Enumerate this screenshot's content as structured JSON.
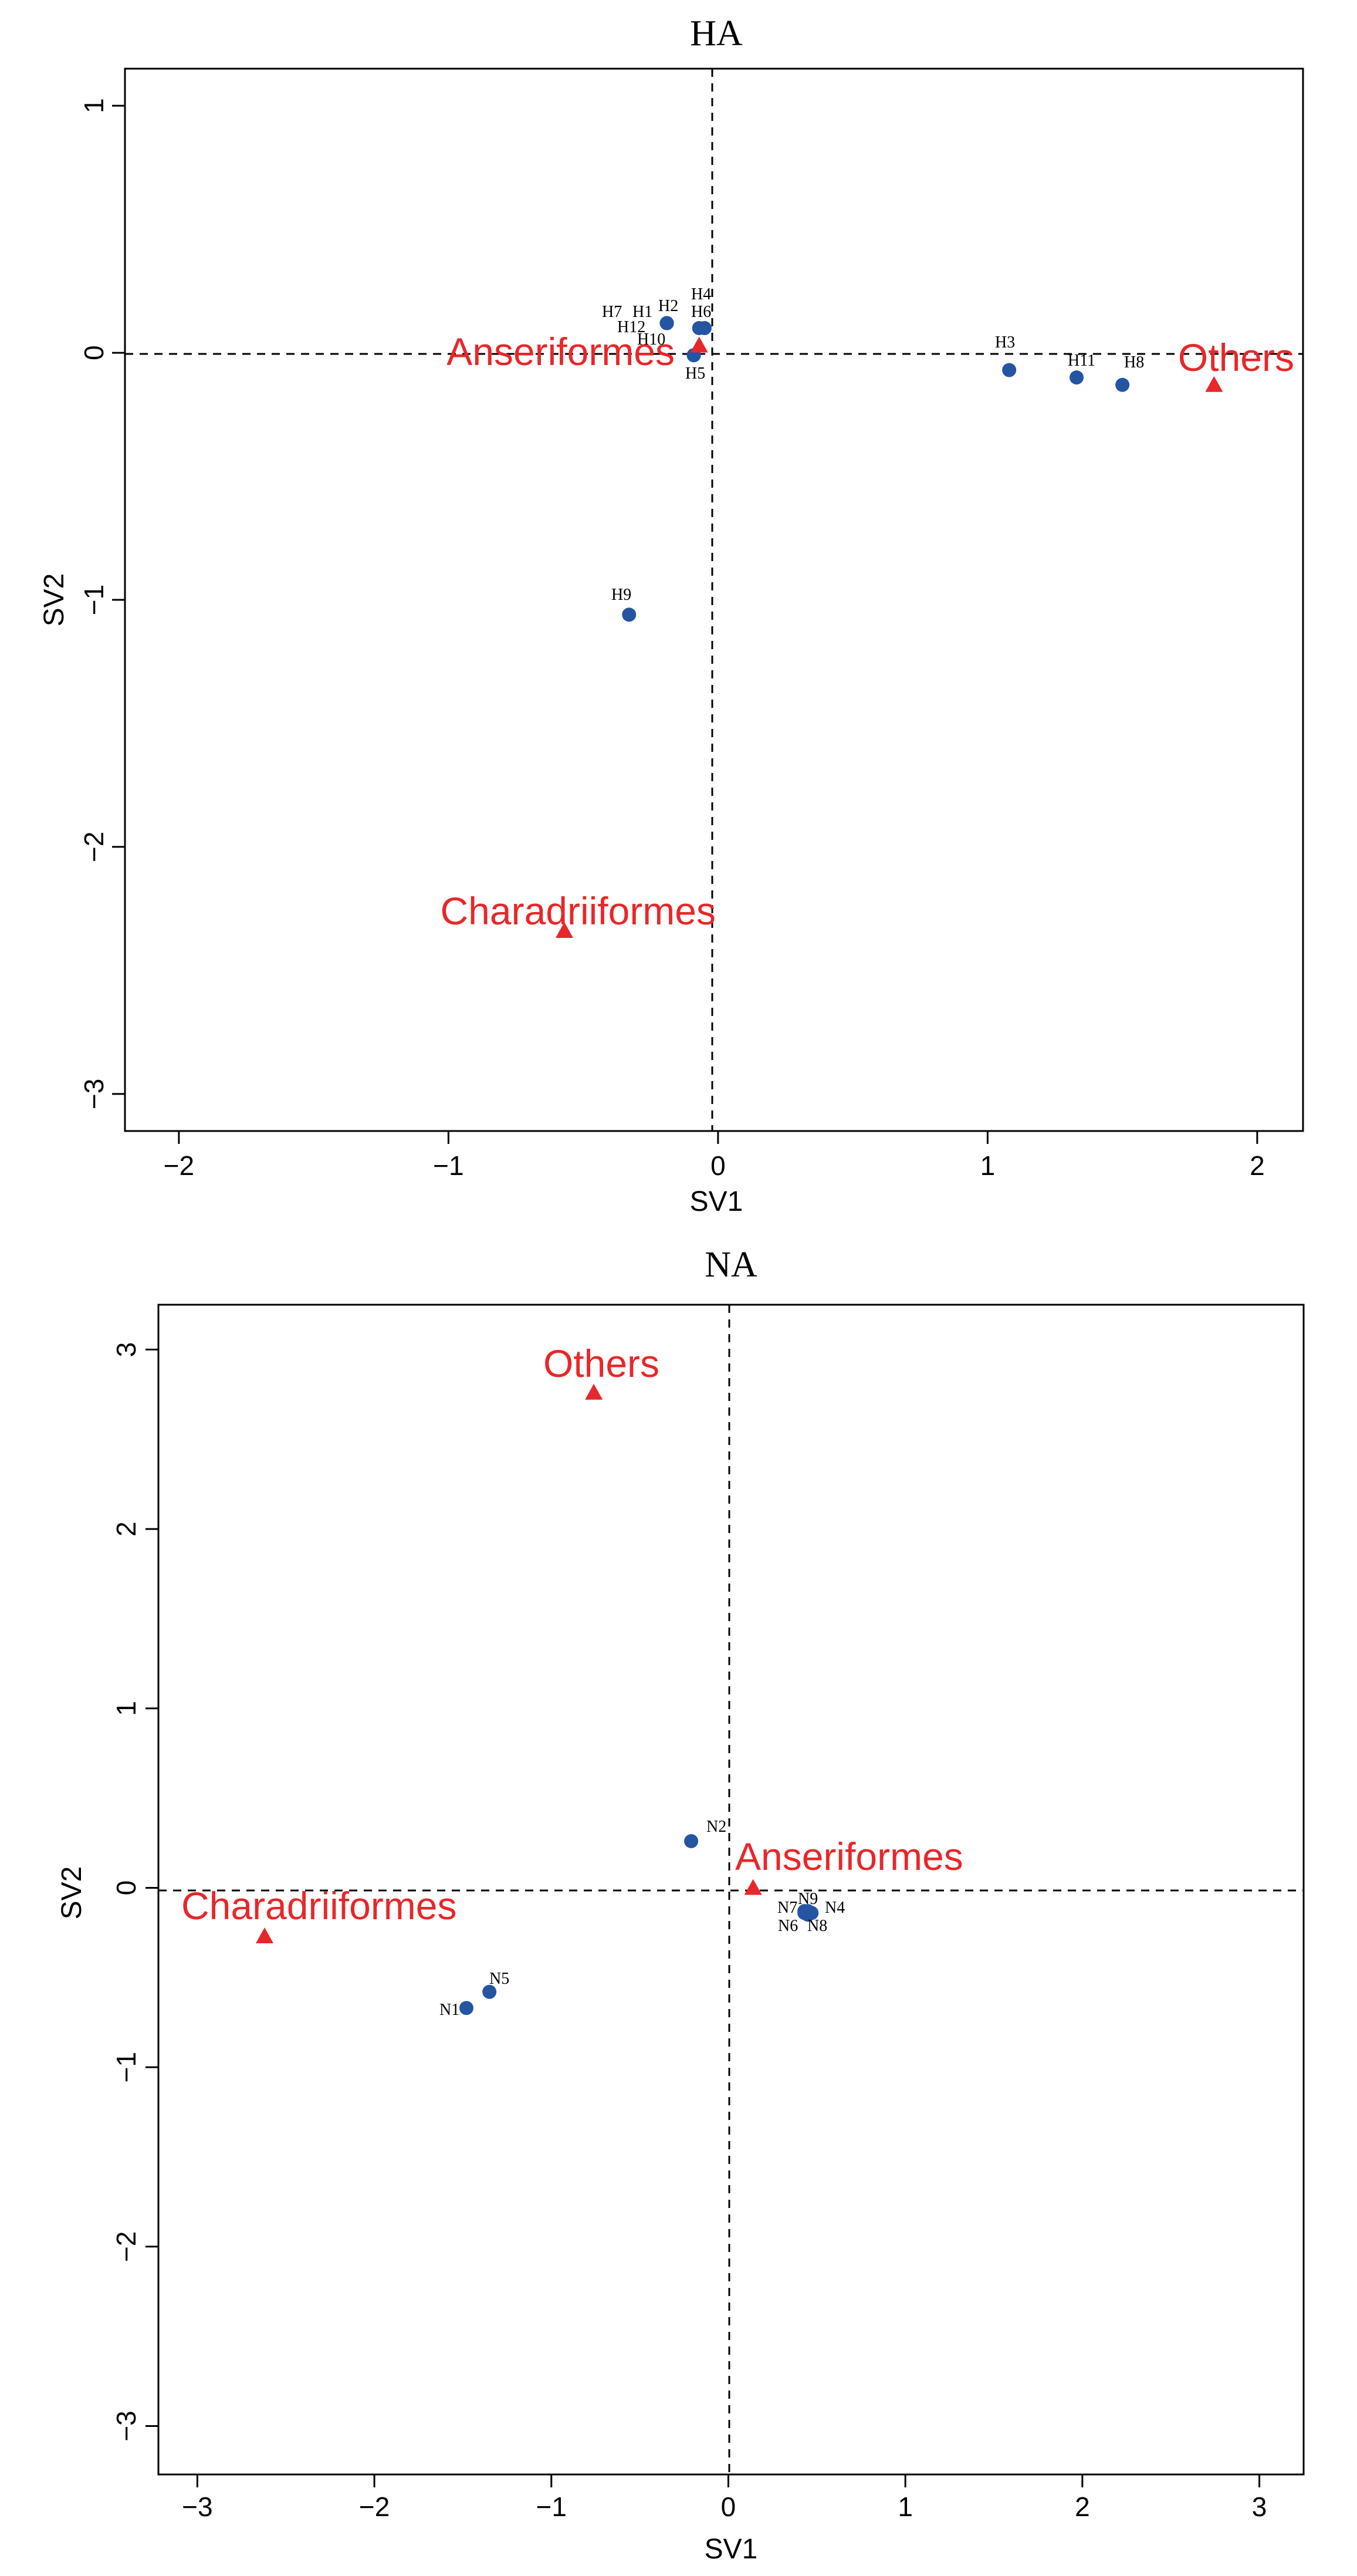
{
  "chart_data": [
    {
      "type": "scatter",
      "title": "HA",
      "xlabel": "SV1",
      "ylabel": "SV2",
      "xlim": [
        -2.2,
        2.17
      ],
      "ylim": [
        -3.15,
        1.15
      ],
      "xticks": [
        -2,
        -1,
        0,
        1,
        2
      ],
      "yticks": [
        -3,
        -2,
        -1,
        0,
        1
      ],
      "reference_lines": {
        "x": 0,
        "y": 0,
        "style": "dashed"
      },
      "colors": {
        "points": "#2554a3",
        "groups": "#e8272a"
      },
      "points": [
        {
          "label": "H7",
          "x": -0.19,
          "y": 0.12
        },
        {
          "label": "H1",
          "x": -0.19,
          "y": 0.12
        },
        {
          "label": "H12",
          "x": -0.19,
          "y": 0.12
        },
        {
          "label": "H2",
          "x": -0.19,
          "y": 0.12
        },
        {
          "label": "H4",
          "x": -0.07,
          "y": 0.1
        },
        {
          "label": "H6",
          "x": -0.05,
          "y": 0.1
        },
        {
          "label": "H10",
          "x": -0.09,
          "y": -0.01
        },
        {
          "label": "H5",
          "x": -0.09,
          "y": -0.01
        },
        {
          "label": "H9",
          "x": -0.33,
          "y": -1.06
        },
        {
          "label": "H3",
          "x": 1.08,
          "y": -0.07
        },
        {
          "label": "H11",
          "x": 1.33,
          "y": -0.1
        },
        {
          "label": "H8",
          "x": 1.5,
          "y": -0.13
        }
      ],
      "groups": [
        {
          "label": "Anseriformes",
          "x": -0.07,
          "y": 0.03
        },
        {
          "label": "Others",
          "x": 1.84,
          "y": -0.13
        },
        {
          "label": "Charadriiformes",
          "x": -0.57,
          "y": -2.34
        }
      ]
    },
    {
      "type": "scatter",
      "title": "NA",
      "xlabel": "SV1",
      "ylabel": "SV2",
      "xlim": [
        -3.22,
        3.25
      ],
      "ylim": [
        -3.27,
        3.25
      ],
      "xticks": [
        -3,
        -2,
        -1,
        0,
        1,
        2,
        3
      ],
      "yticks": [
        -3,
        -2,
        -1,
        0,
        1,
        2,
        3
      ],
      "reference_lines": {
        "x": 0,
        "y": 0,
        "style": "dashed"
      },
      "colors": {
        "points": "#2554a3",
        "groups": "#e8272a"
      },
      "points": [
        {
          "label": "N2",
          "x": -0.21,
          "y": 0.26
        },
        {
          "label": "N7",
          "x": 0.43,
          "y": -0.13
        },
        {
          "label": "N9",
          "x": 0.45,
          "y": -0.13
        },
        {
          "label": "N4",
          "x": 0.47,
          "y": -0.14
        },
        {
          "label": "N6",
          "x": 0.43,
          "y": -0.14
        },
        {
          "label": "N8",
          "x": 0.45,
          "y": -0.15
        },
        {
          "label": "N1",
          "x": -1.48,
          "y": -0.67
        },
        {
          "label": "N5",
          "x": -1.35,
          "y": -0.58
        }
      ],
      "groups": [
        {
          "label": "Others",
          "x": -0.76,
          "y": 2.76
        },
        {
          "label": "Anseriformes",
          "x": 0.14,
          "y": 0.0
        },
        {
          "label": "Charadriiformes",
          "x": -2.62,
          "y": -0.27
        }
      ]
    }
  ]
}
